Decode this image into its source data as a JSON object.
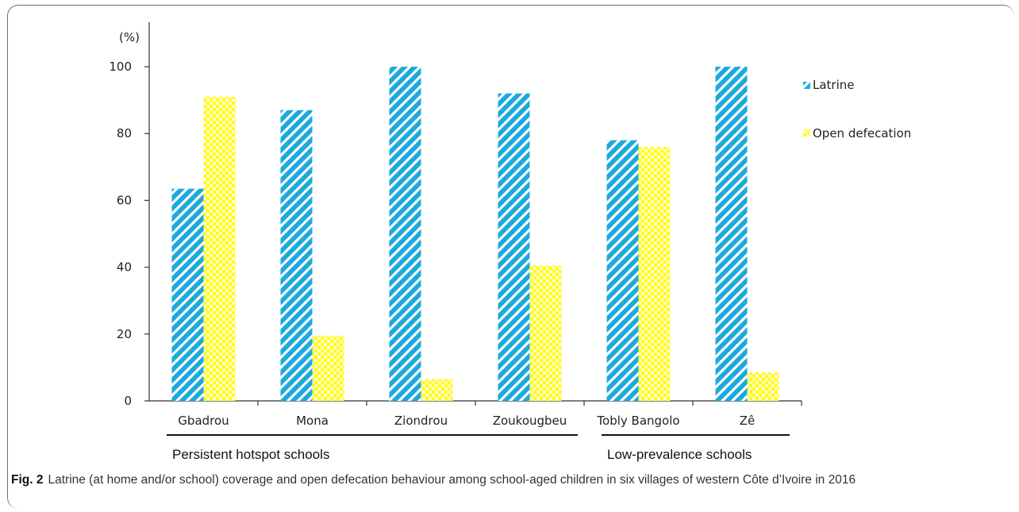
{
  "chart_data": {
    "type": "bar",
    "unit_label": "(%)",
    "ylim": [
      0,
      100
    ],
    "yticks": [
      "0",
      "20",
      "40",
      "60",
      "80",
      "100"
    ],
    "categories": [
      "Gbadrou",
      "Mona",
      "Ziondrou",
      "Zoukougbeu",
      "Tobly Bangolo",
      "Zê"
    ],
    "series": [
      {
        "name": "Latrine",
        "values": [
          63.5,
          87,
          100,
          92,
          78,
          100
        ]
      },
      {
        "name": "Open defecation",
        "values": [
          91,
          19.5,
          6.5,
          40.5,
          76,
          8.5
        ]
      }
    ],
    "groups": [
      {
        "label": "Persistent hotspot schools",
        "from": 0,
        "to": 3
      },
      {
        "label": "Low-prevalence schools",
        "from": 4,
        "to": 5
      }
    ],
    "legend_position": "top-right",
    "colors": {
      "latrine": "#1ca9dd",
      "open_defecation": "#ffff00"
    }
  },
  "caption": {
    "label": "Fig. 2",
    "text": "Latrine (at home and/or school) coverage and open defecation behaviour among school-aged children in six villages of western Côte d’Ivoire in 2016"
  }
}
